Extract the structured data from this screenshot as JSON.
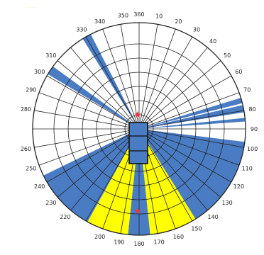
{
  "watermark": {
    "text": "......",
    "color": "#f3e9b6"
  },
  "colors": {
    "blind_zone": "#4a7cc4",
    "visible_zone": "#ffff00",
    "grid": "#222222",
    "marker": "#e53946",
    "vehicle_outline": "#111111"
  },
  "bearing_labels": [
    "350",
    "360",
    "10",
    "20",
    "30",
    "40",
    "50",
    "60",
    "70",
    "80",
    "90",
    "100",
    "110",
    "120",
    "130",
    "140",
    "150",
    "160",
    "170",
    "180",
    "190",
    "200",
    "220",
    "230",
    "240",
    "250",
    "260",
    "280",
    "290",
    "300",
    "310",
    "330",
    "340"
  ],
  "sectors": [
    {
      "zone": "blind",
      "from_deg": 328,
      "to_deg": 333
    },
    {
      "zone": "blind",
      "from_deg": 301,
      "to_deg": 306
    },
    {
      "zone": "blind",
      "from_deg": 73,
      "to_deg": 76
    },
    {
      "zone": "blind",
      "from_deg": 77,
      "to_deg": 81
    },
    {
      "zone": "blind",
      "from_deg": 84,
      "to_deg": 86
    },
    {
      "zone": "blind",
      "from_deg": 97,
      "to_deg": 148
    },
    {
      "zone": "visible",
      "from_deg": 148,
      "to_deg": 174
    },
    {
      "zone": "blind",
      "from_deg": 174,
      "to_deg": 186
    },
    {
      "zone": "visible",
      "from_deg": 186,
      "to_deg": 209
    },
    {
      "zone": "blind",
      "from_deg": 209,
      "to_deg": 244
    }
  ],
  "markers": [
    {
      "name": "front-marker-icon",
      "label": "front"
    },
    {
      "name": "rear-marker-icon",
      "label": "rear"
    }
  ],
  "vehicle": {
    "icon": "vehicle-outline-icon",
    "sections": 3
  }
}
